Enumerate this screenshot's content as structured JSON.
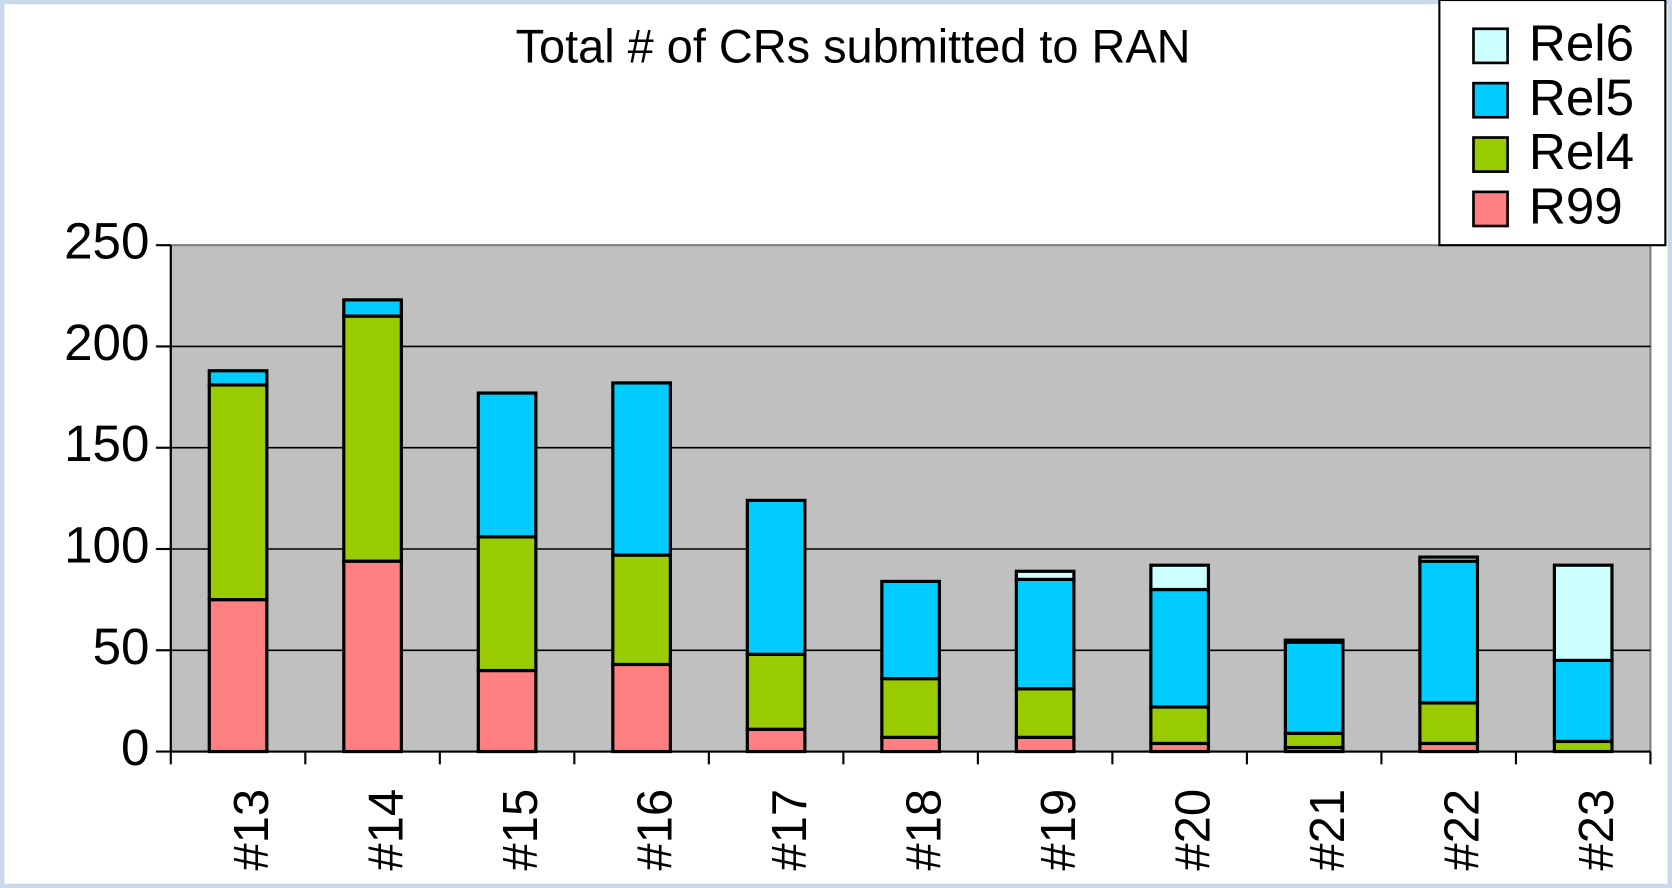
{
  "chart_data": {
    "type": "stacked_bar",
    "title": "Total # of CRs submitted to RAN",
    "categories": [
      "#13",
      "#14",
      "#15",
      "#16",
      "#17",
      "#18",
      "#19",
      "#20",
      "#21",
      "#22",
      "#23"
    ],
    "series": [
      {
        "name": "R99",
        "color": "#ff8080",
        "values": [
          75,
          94,
          40,
          43,
          11,
          7,
          7,
          4,
          2,
          4,
          0
        ]
      },
      {
        "name": "Rel4",
        "color": "#99cc00",
        "values": [
          106,
          121,
          66,
          54,
          37,
          29,
          24,
          18,
          7,
          20,
          5
        ]
      },
      {
        "name": "Rel5",
        "color": "#00ccff",
        "values": [
          7,
          8,
          71,
          85,
          76,
          48,
          54,
          58,
          45,
          70,
          40
        ]
      },
      {
        "name": "Rel6",
        "color": "#ccffff",
        "values": [
          0,
          0,
          0,
          0,
          0,
          0,
          4,
          12,
          1,
          2,
          47
        ]
      }
    ],
    "ylim": [
      0,
      250
    ],
    "yticks": [
      0,
      50,
      100,
      150,
      200,
      250
    ],
    "grid": true,
    "legend": "top-right"
  }
}
